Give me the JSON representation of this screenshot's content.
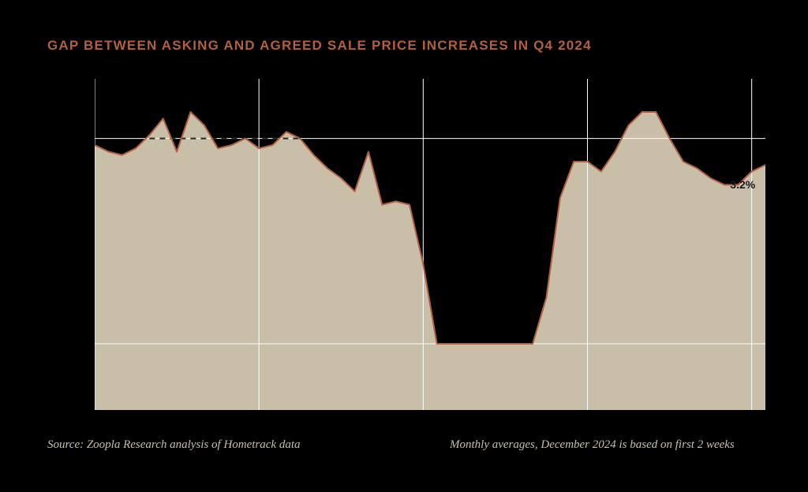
{
  "title": "GAP BETWEEN ASKING AND AGREED SALE PRICE INCREASES IN Q4 2024",
  "title_color": "#b0603f",
  "footer_left": "Source: Zoopla Research analysis of Hometrack data",
  "footer_right": "Monthly averages, December 2024 is based on first 2 weeks",
  "footer_color": "#c8bfa9",
  "chart": {
    "type": "area",
    "background": "#000000",
    "fill_color": "#c9bfa8",
    "line_color": "#b0603f",
    "line_width": 2,
    "ylim": [
      0,
      100
    ],
    "y_gridlines": [
      20,
      82
    ],
    "x_gridlines_idx": [
      0,
      12,
      24,
      36,
      48
    ],
    "gridline_color": "#ffffff",
    "gridline_width": 1,
    "dashed_ref": {
      "y": 82,
      "x_start_idx": 4,
      "x_end_idx": 15,
      "color": "#2a2a2a"
    },
    "annotation": {
      "text": "3.2%",
      "x_idx": 47,
      "y": 68
    },
    "series": [
      80,
      78,
      77,
      79,
      83,
      88,
      78,
      90,
      86,
      79,
      80,
      82,
      79,
      80,
      84,
      82,
      77,
      73,
      70,
      66,
      78,
      62,
      63,
      62,
      44,
      20,
      20,
      20,
      20,
      20,
      20,
      20,
      20,
      34,
      64,
      75,
      75,
      72,
      78,
      86,
      90,
      90,
      82,
      75,
      73,
      70,
      68,
      68,
      72,
      74
    ]
  }
}
